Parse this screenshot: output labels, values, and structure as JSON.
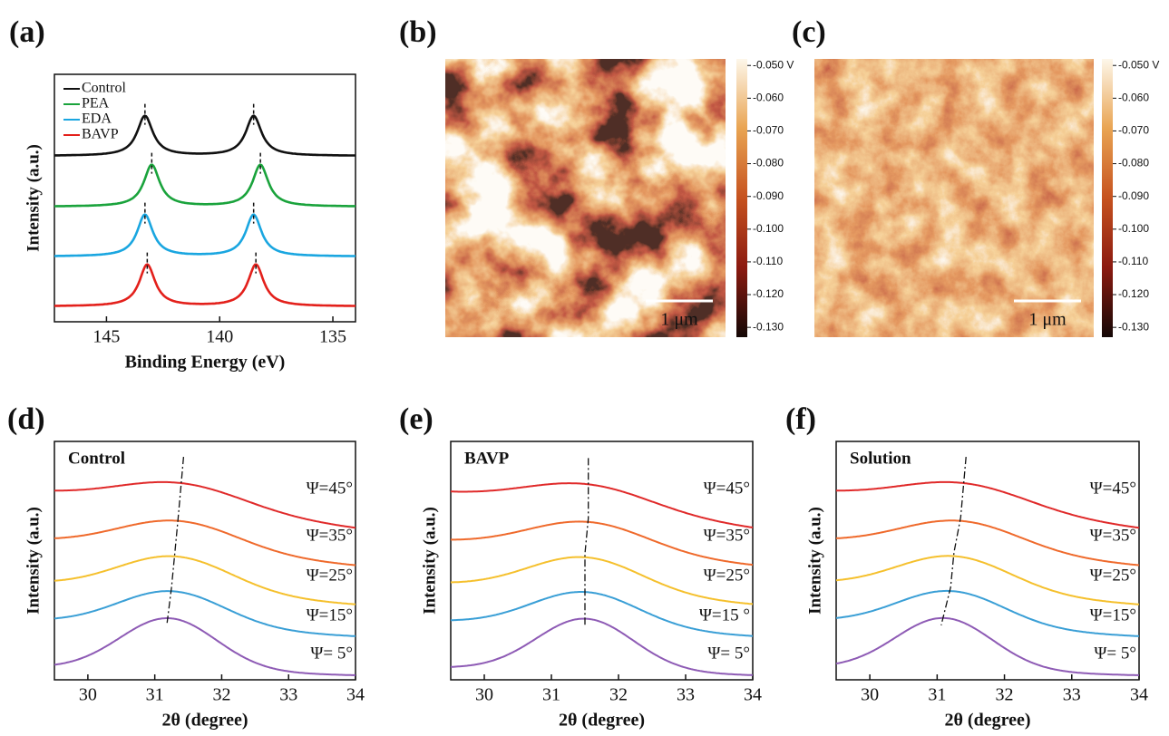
{
  "chart_data": [
    {
      "type": "line",
      "panel_label": "(a)",
      "xlabel": "Binding Energy (eV)",
      "ylabel": "Intensity (a.u.)",
      "xlim": [
        147.3,
        134
      ],
      "xticks": [
        145,
        140,
        135
      ],
      "legend": "upper left",
      "series": [
        {
          "name": "Control",
          "color": "#111111",
          "peaks": [
            143.3,
            138.5
          ]
        },
        {
          "name": "PEA",
          "color": "#1aa33c",
          "peaks": [
            143.0,
            138.2
          ]
        },
        {
          "name": "EDA",
          "color": "#1aa6e0",
          "peaks": [
            143.3,
            138.5
          ]
        },
        {
          "name": "BAVP",
          "color": "#e3201b",
          "peaks": [
            143.2,
            138.4
          ]
        }
      ]
    },
    {
      "type": "heatmap",
      "panel_label": "(b)",
      "scale_bar": "1 μm",
      "clim": [
        -0.133,
        -0.048
      ],
      "cticks": [
        {
          "value": -0.05,
          "label": "-0.050 V"
        },
        {
          "value": -0.06,
          "label": "-0.060"
        },
        {
          "value": -0.07,
          "label": "-0.070"
        },
        {
          "value": -0.08,
          "label": "-0.080"
        },
        {
          "value": -0.09,
          "label": "-0.090"
        },
        {
          "value": -0.1,
          "label": "-0.100"
        },
        {
          "value": -0.11,
          "label": "-0.110"
        },
        {
          "value": -0.12,
          "label": "-0.120"
        },
        {
          "value": -0.13,
          "label": "-0.130"
        }
      ]
    },
    {
      "type": "heatmap",
      "panel_label": "(c)",
      "scale_bar": "1 μm",
      "clim": [
        -0.133,
        -0.048
      ],
      "cticks": [
        {
          "value": -0.05,
          "label": "-0.050 V"
        },
        {
          "value": -0.06,
          "label": "-0.060"
        },
        {
          "value": -0.07,
          "label": "-0.070"
        },
        {
          "value": -0.08,
          "label": "-0.080"
        },
        {
          "value": -0.09,
          "label": "-0.090"
        },
        {
          "value": -0.1,
          "label": "-0.100"
        },
        {
          "value": -0.11,
          "label": "-0.110"
        },
        {
          "value": -0.12,
          "label": "-0.120"
        },
        {
          "value": -0.13,
          "label": "-0.130"
        }
      ]
    },
    {
      "type": "line",
      "panel_label": "(d)",
      "inset": "Control",
      "xlabel": "2θ (degree)",
      "ylabel": "Intensity (a.u.)",
      "xlim": [
        29.5,
        34
      ],
      "xticks": [
        30,
        31,
        32,
        33,
        34
      ],
      "series": [
        {
          "name": "Ψ=45°",
          "color": "#e02a2a",
          "peaks": [
            31.4
          ]
        },
        {
          "name": "Ψ=35°",
          "color": "#ef6a2c",
          "peaks": [
            31.35
          ]
        },
        {
          "name": "Ψ=25°",
          "color": "#f5c02d",
          "peaks": [
            31.3
          ]
        },
        {
          "name": "Ψ=15°",
          "color": "#3a9fd6",
          "peaks": [
            31.25
          ]
        },
        {
          "name": "Ψ= 5°",
          "color": "#8e5bb5",
          "peaks": [
            31.2
          ]
        }
      ]
    },
    {
      "type": "line",
      "panel_label": "(e)",
      "inset": "BAVP",
      "xlabel": "2θ (degree)",
      "ylabel": "Intensity (a.u.)",
      "xlim": [
        29.5,
        34
      ],
      "xticks": [
        30,
        31,
        32,
        33,
        34
      ],
      "series": [
        {
          "name": "Ψ=45°",
          "color": "#e02a2a",
          "peaks": [
            31.55
          ]
        },
        {
          "name": "Ψ=35°",
          "color": "#ef6a2c",
          "peaks": [
            31.55
          ]
        },
        {
          "name": "Ψ=25°",
          "color": "#f5c02d",
          "peaks": [
            31.5
          ]
        },
        {
          "name": "Ψ=15 °",
          "color": "#3a9fd6",
          "peaks": [
            31.5
          ]
        },
        {
          "name": "Ψ= 5°",
          "color": "#8e5bb5",
          "peaks": [
            31.5
          ]
        }
      ]
    },
    {
      "type": "line",
      "panel_label": "(f)",
      "inset": "Solution",
      "xlabel": "2θ (degree)",
      "ylabel": "Intensity (a.u.)",
      "xlim": [
        29.5,
        34
      ],
      "xticks": [
        30,
        31,
        32,
        33,
        34
      ],
      "series": [
        {
          "name": "Ψ=45°",
          "color": "#e02a2a",
          "peaks": [
            31.4
          ]
        },
        {
          "name": "Ψ=35°",
          "color": "#ef6a2c",
          "peaks": [
            31.35
          ]
        },
        {
          "name": "Ψ=25°",
          "color": "#f5c02d",
          "peaks": [
            31.25
          ]
        },
        {
          "name": "Ψ=15°",
          "color": "#3a9fd6",
          "peaks": [
            31.2
          ]
        },
        {
          "name": "Ψ= 5°",
          "color": "#8e5bb5",
          "peaks": [
            31.1
          ]
        }
      ]
    }
  ]
}
